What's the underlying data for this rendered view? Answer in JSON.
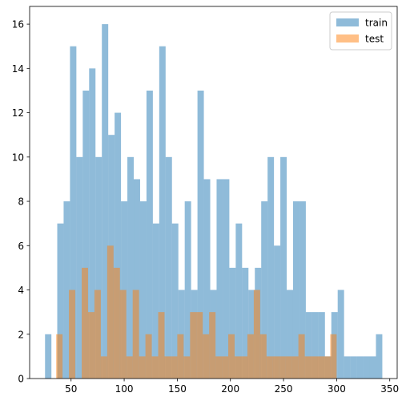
{
  "chart_data": {
    "type": "bar",
    "title": "",
    "xlabel": "",
    "ylabel": "",
    "xlim": [
      11,
      357
    ],
    "ylim": [
      0,
      16.8
    ],
    "x_ticks": [
      50,
      100,
      150,
      200,
      250,
      300,
      350
    ],
    "y_ticks": [
      0,
      2,
      4,
      6,
      8,
      10,
      12,
      14,
      16
    ],
    "grid": false,
    "legend_position": "top-right",
    "series": [
      {
        "name": "train",
        "color": "#1f77b4",
        "opacity": 0.5,
        "bins": [
          [
            25.5,
            31.5,
            2
          ],
          [
            37.0,
            43.0,
            7
          ],
          [
            43.0,
            49.0,
            8
          ],
          [
            49.0,
            55.0,
            15
          ],
          [
            55.0,
            61.0,
            10
          ],
          [
            61.0,
            67.0,
            13
          ],
          [
            67.0,
            73.0,
            14
          ],
          [
            73.0,
            79.0,
            10
          ],
          [
            79.0,
            85.0,
            16
          ],
          [
            85.0,
            91.0,
            11
          ],
          [
            91.0,
            97.0,
            12
          ],
          [
            97.0,
            103.0,
            8
          ],
          [
            103.0,
            109.0,
            10
          ],
          [
            109.0,
            115.0,
            9
          ],
          [
            115.0,
            121.0,
            8
          ],
          [
            121.0,
            127.0,
            13
          ],
          [
            127.0,
            133.0,
            7
          ],
          [
            133.0,
            139.0,
            15
          ],
          [
            139.0,
            145.0,
            10
          ],
          [
            145.0,
            151.0,
            7
          ],
          [
            151.0,
            157.0,
            4
          ],
          [
            157.0,
            163.0,
            8
          ],
          [
            163.0,
            169.0,
            4
          ],
          [
            169.0,
            175.0,
            13
          ],
          [
            175.0,
            181.0,
            9
          ],
          [
            181.0,
            187.0,
            4
          ],
          [
            187.0,
            193.0,
            9
          ],
          [
            193.0,
            199.0,
            9
          ],
          [
            199.0,
            205.0,
            5
          ],
          [
            205.0,
            211.0,
            7
          ],
          [
            211.0,
            217.0,
            5
          ],
          [
            217.0,
            223.0,
            4
          ],
          [
            223.0,
            229.0,
            5
          ],
          [
            229.0,
            235.0,
            8
          ],
          [
            235.0,
            241.0,
            10
          ],
          [
            241.0,
            247.0,
            6
          ],
          [
            247.0,
            253.0,
            10
          ],
          [
            253.0,
            259.0,
            4
          ],
          [
            259.0,
            265.0,
            8
          ],
          [
            265.0,
            271.0,
            8
          ],
          [
            271.0,
            277.0,
            3
          ],
          [
            277.0,
            283.0,
            3
          ],
          [
            283.0,
            289.0,
            3
          ],
          [
            289.0,
            295.0,
            1
          ],
          [
            295.0,
            301.0,
            3
          ],
          [
            301.0,
            307.0,
            4
          ],
          [
            307.0,
            313.0,
            1
          ],
          [
            313.0,
            319.0,
            1
          ],
          [
            319.0,
            325.0,
            1
          ],
          [
            325.0,
            331.0,
            1
          ],
          [
            331.0,
            337.0,
            1
          ],
          [
            337.0,
            343.0,
            2
          ]
        ]
      },
      {
        "name": "test",
        "color": "#ff7f0e",
        "opacity": 0.5,
        "bins": [
          [
            36.0,
            42.0,
            2
          ],
          [
            48.0,
            54.0,
            4
          ],
          [
            60.0,
            66.0,
            5
          ],
          [
            66.0,
            72.0,
            3
          ],
          [
            72.0,
            78.0,
            4
          ],
          [
            78.0,
            84.0,
            1
          ],
          [
            84.0,
            90.0,
            6
          ],
          [
            90.0,
            96.0,
            5
          ],
          [
            96.0,
            102.0,
            4
          ],
          [
            102.0,
            108.0,
            1
          ],
          [
            108.0,
            114.0,
            4
          ],
          [
            114.0,
            120.0,
            1
          ],
          [
            120.0,
            126.0,
            2
          ],
          [
            126.0,
            132.0,
            1
          ],
          [
            132.0,
            138.0,
            3
          ],
          [
            138.0,
            144.0,
            1
          ],
          [
            144.0,
            150.0,
            1
          ],
          [
            150.0,
            156.0,
            2
          ],
          [
            156.0,
            162.0,
            1
          ],
          [
            162.0,
            168.0,
            3
          ],
          [
            168.0,
            174.0,
            3
          ],
          [
            174.0,
            180.0,
            2
          ],
          [
            180.0,
            186.0,
            3
          ],
          [
            186.0,
            192.0,
            1
          ],
          [
            192.0,
            198.0,
            1
          ],
          [
            198.0,
            204.0,
            2
          ],
          [
            204.0,
            210.0,
            1
          ],
          [
            210.0,
            216.0,
            1
          ],
          [
            216.0,
            222.0,
            2
          ],
          [
            222.0,
            228.0,
            4
          ],
          [
            228.0,
            234.0,
            2
          ],
          [
            234.0,
            240.0,
            1
          ],
          [
            240.0,
            246.0,
            1
          ],
          [
            246.0,
            252.0,
            1
          ],
          [
            252.0,
            258.0,
            1
          ],
          [
            258.0,
            264.0,
            1
          ],
          [
            264.0,
            270.0,
            2
          ],
          [
            270.0,
            276.0,
            1
          ],
          [
            276.0,
            282.0,
            1
          ],
          [
            282.0,
            288.0,
            1
          ],
          [
            288.0,
            294.0,
            1
          ],
          [
            294.0,
            300.0,
            2
          ]
        ]
      }
    ]
  }
}
